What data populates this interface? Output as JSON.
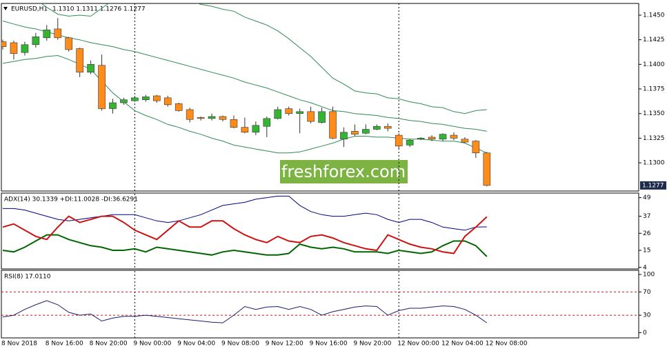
{
  "watermark": "freshforex.com",
  "chart_data": [
    {
      "type": "candlestick",
      "title": "EURUSD,H1",
      "ohlc_text": "1.1310 1.1311 1.1276 1.1277",
      "last_price_label": "1.1277",
      "categories": [
        "8 Nov 2018",
        null,
        null,
        null,
        "8 Nov 16:00",
        null,
        null,
        null,
        "8 Nov 20:00",
        null,
        null,
        null,
        "9 Nov 00:00",
        null,
        null,
        null,
        "9 Nov 04:00",
        null,
        null,
        null,
        "9 Nov 08:00",
        null,
        null,
        null,
        "9 Nov 12:00",
        null,
        null,
        null,
        "9 Nov 16:00",
        null,
        null,
        null,
        "9 Nov 20:00",
        null,
        null,
        null,
        "12 Nov 00:00",
        null,
        null,
        null,
        "12 Nov 04:00",
        null,
        null,
        null,
        "12 Nov 08:00"
      ],
      "open": [
        1.1423,
        1.1422,
        1.1412,
        1.142,
        1.1427,
        1.1436,
        1.1427,
        1.1416,
        1.1392,
        1.1399,
        1.1355,
        1.1361,
        1.1363,
        1.1364,
        1.1368,
        1.1366,
        1.136,
        1.1354,
        1.1346,
        1.1345,
        1.1347,
        1.1344,
        1.1336,
        1.1331,
        1.1337,
        1.1345,
        1.1355,
        1.135,
        1.1352,
        1.1341,
        1.1352,
        1.1324,
        1.1332,
        1.133,
        1.1334,
        1.1337,
        1.1328,
        1.1318,
        1.1324,
        1.1326,
        1.1324,
        1.1328,
        1.1324,
        1.1322,
        1.131
      ],
      "high": [
        1.1425,
        1.1424,
        1.1423,
        1.1432,
        1.144,
        1.1447,
        1.1428,
        1.1417,
        1.1404,
        1.141,
        1.1365,
        1.1366,
        1.1368,
        1.1369,
        1.1369,
        1.1368,
        1.1361,
        1.1356,
        1.1347,
        1.135,
        1.1348,
        1.1348,
        1.1346,
        1.1342,
        1.1347,
        1.1357,
        1.1357,
        1.1355,
        1.1357,
        1.1356,
        1.1357,
        1.1336,
        1.1339,
        1.1339,
        1.1339,
        1.134,
        1.133,
        1.1324,
        1.1326,
        1.1328,
        1.133,
        1.1331,
        1.1326,
        1.1323,
        1.1311
      ],
      "low": [
        1.1415,
        1.1405,
        1.1409,
        1.1417,
        1.1424,
        1.1425,
        1.1413,
        1.1387,
        1.139,
        1.1353,
        1.135,
        1.1359,
        1.1362,
        1.1362,
        1.1361,
        1.1357,
        1.1352,
        1.1341,
        1.1343,
        1.1343,
        1.1342,
        1.1335,
        1.133,
        1.1328,
        1.1326,
        1.1344,
        1.1348,
        1.133,
        1.134,
        1.134,
        1.1324,
        1.1316,
        1.1327,
        1.1329,
        1.1333,
        1.1332,
        1.1314,
        1.1316,
        1.1323,
        1.1322,
        1.1322,
        1.1323,
        1.132,
        1.1305,
        1.1276
      ],
      "close": [
        1.1418,
        1.1411,
        1.142,
        1.1428,
        1.1435,
        1.1427,
        1.1415,
        1.1392,
        1.14,
        1.1355,
        1.1361,
        1.1364,
        1.1366,
        1.1367,
        1.1363,
        1.1359,
        1.1353,
        1.1344,
        1.1345,
        1.1347,
        1.1344,
        1.1336,
        1.1331,
        1.1338,
        1.1345,
        1.1354,
        1.135,
        1.1352,
        1.1342,
        1.1352,
        1.1325,
        1.1331,
        1.1329,
        1.1334,
        1.1337,
        1.1335,
        1.1317,
        1.1323,
        1.1325,
        1.1324,
        1.1329,
        1.1325,
        1.1321,
        1.131,
        1.1277
      ],
      "up_color": "#33b533",
      "down_color": "#ff8c1a",
      "bands": [
        {
          "color": "#2e8b57",
          "values": [
            1.1487,
            1.1479,
            1.1471,
            1.1466,
            1.1458,
            1.1451,
            1.1449,
            1.145,
            1.1449,
            1.1457,
            1.1465,
            1.1468,
            1.1473,
            1.1472,
            1.147,
            1.1469,
            1.1466,
            1.1464,
            1.1461,
            1.1459,
            1.1456,
            1.1454,
            1.1448,
            1.1444,
            1.144,
            1.1434,
            1.1426,
            1.1417,
            1.1408,
            1.1397,
            1.1386,
            1.138,
            1.1373,
            1.1371,
            1.137,
            1.1366,
            1.1365,
            1.1362,
            1.136,
            1.1357,
            1.1356,
            1.1352,
            1.135,
            1.1353,
            1.1354
          ]
        },
        {
          "color": "#2e8b57",
          "values": [
            1.1444,
            1.1441,
            1.1438,
            1.1436,
            1.1433,
            1.143,
            1.1427,
            1.1425,
            1.1422,
            1.142,
            1.1418,
            1.1415,
            1.1413,
            1.141,
            1.1407,
            1.1404,
            1.1401,
            1.1398,
            1.1395,
            1.1392,
            1.1389,
            1.1386,
            1.1382,
            1.1379,
            1.1376,
            1.1372,
            1.1368,
            1.1364,
            1.1361,
            1.1357,
            1.1353,
            1.1352,
            1.135,
            1.1349,
            1.1348,
            1.1346,
            1.1345,
            1.1343,
            1.1342,
            1.134,
            1.1339,
            1.1337,
            1.1335,
            1.1334,
            1.1332
          ]
        },
        {
          "color": "#2e8b57",
          "values": [
            1.1401,
            1.1403,
            1.1405,
            1.1406,
            1.1408,
            1.1409,
            1.1405,
            1.14,
            1.1395,
            1.1383,
            1.1371,
            1.1362,
            1.1353,
            1.1348,
            1.1344,
            1.1339,
            1.1336,
            1.1332,
            1.1329,
            1.1325,
            1.1322,
            1.1318,
            1.1316,
            1.1314,
            1.1312,
            1.131,
            1.131,
            1.1311,
            1.1314,
            1.1317,
            1.132,
            1.1324,
            1.1327,
            1.1327,
            1.1326,
            1.1326,
            1.1325,
            1.1324,
            1.1324,
            1.1323,
            1.1322,
            1.1322,
            1.132,
            1.1315,
            1.131
          ]
        }
      ],
      "ylim": [
        1.12713,
        1.14619
      ],
      "yticks": [
        {
          "value": 1.145,
          "label": "1.1450"
        },
        {
          "value": 1.1425,
          "label": "1.1425"
        },
        {
          "value": 1.14,
          "label": "1.1400"
        },
        {
          "value": 1.1375,
          "label": "1.1375"
        },
        {
          "value": 1.135,
          "label": "1.1350"
        },
        {
          "value": 1.1325,
          "label": "1.1325"
        },
        {
          "value": 1.13,
          "label": "1.1300"
        }
      ]
    },
    {
      "type": "line",
      "title": "ADX(14) 30.1339 +DI:11.0028 -DI:36.6291",
      "series": [
        {
          "color": "#000080",
          "width": 1,
          "values": [
            42,
            42,
            41,
            39,
            37,
            35,
            34,
            35,
            36,
            37,
            38,
            38,
            38,
            36,
            34,
            33,
            34,
            36,
            38,
            41,
            44,
            45,
            46,
            48,
            49,
            50,
            50,
            44,
            40,
            38,
            37,
            37,
            38,
            39,
            38,
            35,
            33,
            35,
            35,
            33,
            30,
            29,
            28,
            30,
            30.1339
          ]
        },
        {
          "color": "#006400",
          "width": 2,
          "values": [
            15,
            14,
            17,
            21,
            25,
            25,
            22,
            20,
            18,
            17,
            15,
            15,
            16,
            14,
            17,
            16,
            15,
            14,
            13,
            12,
            14,
            15,
            14,
            13,
            12,
            12,
            13,
            19,
            17,
            16,
            17,
            16,
            14,
            14,
            14,
            13,
            15,
            14,
            13,
            14,
            18,
            21,
            21,
            18,
            11.0028
          ]
        },
        {
          "color": "#cc1111",
          "width": 2,
          "values": [
            30,
            32,
            28,
            24,
            22,
            30,
            37,
            33,
            35,
            37,
            37,
            33,
            28,
            25,
            22,
            28,
            34,
            30,
            30,
            34,
            34,
            29,
            25,
            22,
            20,
            24,
            21,
            20,
            24,
            25,
            23,
            20,
            18,
            16,
            15,
            25,
            22,
            19,
            17,
            16,
            14,
            13,
            24,
            30,
            36.6291
          ]
        }
      ],
      "ylim": [
        3,
        51.5
      ],
      "yticks": [
        49,
        37,
        26,
        15,
        4
      ]
    },
    {
      "type": "line",
      "title": "RSI(8) 17.0110",
      "series": [
        {
          "color": "#1a1a6e",
          "width": 1,
          "values": [
            27,
            30,
            40,
            48,
            55,
            48,
            35,
            30,
            32,
            20,
            25,
            28,
            28,
            30,
            28,
            26,
            24,
            22,
            20,
            18,
            17,
            30,
            45,
            40,
            44,
            45,
            40,
            45,
            40,
            30,
            36,
            40,
            44,
            46,
            45,
            30,
            38,
            42,
            42,
            44,
            46,
            45,
            40,
            30,
            17.011
          ]
        }
      ],
      "level_lines": [
        70,
        30
      ],
      "level_color": "#cc1111",
      "ylim": [
        -9,
        106
      ],
      "yticks": [
        100,
        70,
        30,
        0
      ]
    }
  ]
}
